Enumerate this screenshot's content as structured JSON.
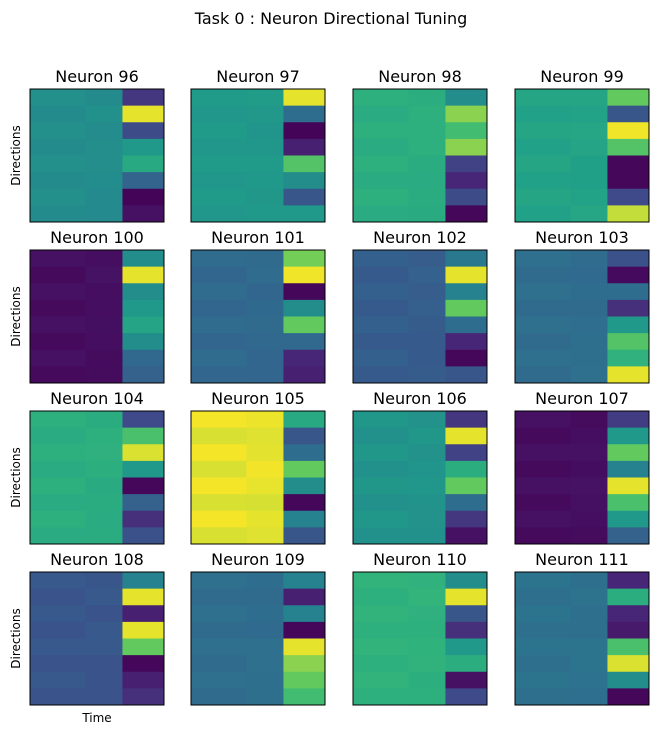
{
  "chart_data": {
    "type": "heatmap",
    "title": "Task 0 : Neuron Directional Tuning",
    "xlabel": "Time",
    "ylabel": "Directions",
    "colormap": "viridis",
    "value_range": [
      0,
      1
    ],
    "grid": false,
    "panels": [
      {
        "title": "Neuron 96",
        "pre_value": 0.55,
        "stimulus_values": [
          0.18,
          0.98,
          0.26,
          0.6,
          0.68,
          0.36,
          0.01,
          0.05
        ]
      },
      {
        "title": "Neuron 97",
        "pre_value": 0.6,
        "stimulus_values": [
          0.98,
          0.4,
          0.01,
          0.1,
          0.82,
          0.55,
          0.3,
          0.6
        ]
      },
      {
        "title": "Neuron 98",
        "pre_value": 0.7,
        "stimulus_values": [
          0.55,
          0.9,
          0.78,
          0.9,
          0.22,
          0.12,
          0.26,
          0.02
        ]
      },
      {
        "title": "Neuron 99",
        "pre_value": 0.65,
        "stimulus_values": [
          0.85,
          0.3,
          0.99,
          0.82,
          0.02,
          0.02,
          0.25,
          0.95
        ]
      },
      {
        "title": "Neuron 100",
        "pre_value": 0.04,
        "stimulus_values": [
          0.55,
          0.98,
          0.55,
          0.6,
          0.66,
          0.55,
          0.38,
          0.35
        ]
      },
      {
        "title": "Neuron 101",
        "pre_value": 0.38,
        "stimulus_values": [
          0.88,
          0.99,
          0.02,
          0.55,
          0.85,
          0.38,
          0.12,
          0.1
        ]
      },
      {
        "title": "Neuron 102",
        "pre_value": 0.33,
        "stimulus_values": [
          0.45,
          0.98,
          0.5,
          0.85,
          0.4,
          0.12,
          0.02,
          0.3
        ]
      },
      {
        "title": "Neuron 103",
        "pre_value": 0.4,
        "stimulus_values": [
          0.28,
          0.03,
          0.4,
          0.15,
          0.6,
          0.82,
          0.72,
          0.98
        ]
      },
      {
        "title": "Neuron 104",
        "pre_value": 0.7,
        "stimulus_values": [
          0.25,
          0.8,
          0.97,
          0.6,
          0.02,
          0.35,
          0.15,
          0.28
        ]
      },
      {
        "title": "Neuron 105",
        "pre_value": 0.98,
        "stimulus_values": [
          0.68,
          0.3,
          0.4,
          0.85,
          0.55,
          0.02,
          0.5,
          0.3
        ]
      },
      {
        "title": "Neuron 106",
        "pre_value": 0.58,
        "stimulus_values": [
          0.18,
          0.98,
          0.22,
          0.7,
          0.85,
          0.4,
          0.18,
          0.05
        ]
      },
      {
        "title": "Neuron 107",
        "pre_value": 0.04,
        "stimulus_values": [
          0.2,
          0.6,
          0.85,
          0.5,
          0.98,
          0.8,
          0.6,
          0.35
        ]
      },
      {
        "title": "Neuron 108",
        "pre_value": 0.3,
        "stimulus_values": [
          0.5,
          0.98,
          0.1,
          0.98,
          0.85,
          0.02,
          0.1,
          0.15
        ]
      },
      {
        "title": "Neuron 109",
        "pre_value": 0.4,
        "stimulus_values": [
          0.5,
          0.1,
          0.5,
          0.02,
          0.98,
          0.9,
          0.85,
          0.78
        ]
      },
      {
        "title": "Neuron 110",
        "pre_value": 0.72,
        "stimulus_values": [
          0.55,
          0.98,
          0.3,
          0.15,
          0.6,
          0.7,
          0.05,
          0.25
        ]
      },
      {
        "title": "Neuron 111",
        "pre_value": 0.42,
        "stimulus_values": [
          0.12,
          0.7,
          0.12,
          0.08,
          0.8,
          0.97,
          0.55,
          0.02
        ]
      }
    ]
  }
}
